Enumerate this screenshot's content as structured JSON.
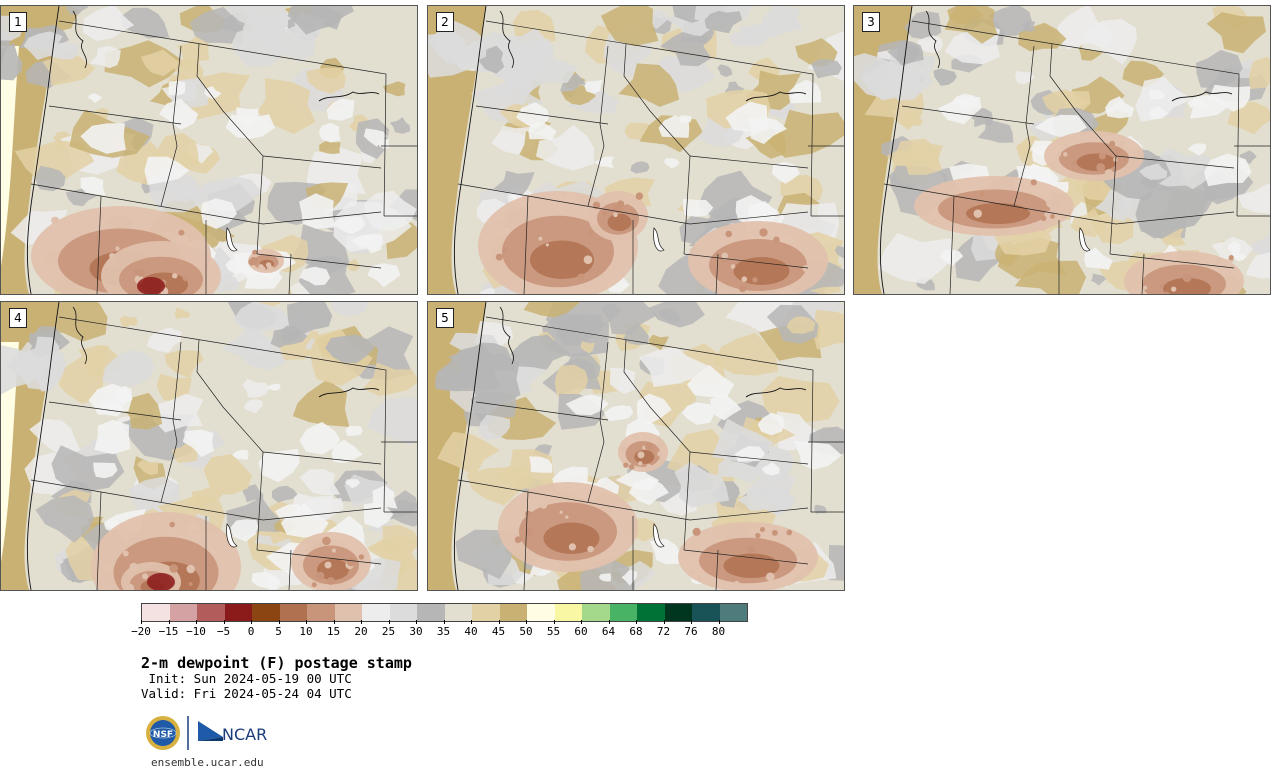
{
  "panels": [
    {
      "label": "1",
      "hot": [
        [
          120,
          250,
          90,
          50
        ],
        [
          160,
          270,
          60,
          35
        ],
        [
          265,
          255,
          18,
          12
        ]
      ],
      "cold": [
        [
          60,
          40,
          170,
          60
        ],
        [
          300,
          20,
          90,
          40
        ]
      ]
    },
    {
      "label": "2",
      "hot": [
        [
          130,
          240,
          80,
          55
        ],
        [
          190,
          210,
          30,
          25
        ],
        [
          330,
          255,
          70,
          40
        ]
      ],
      "cold": [
        [
          300,
          20,
          110,
          50
        ],
        [
          60,
          60,
          120,
          50
        ]
      ]
    },
    {
      "label": "3",
      "hot": [
        [
          140,
          200,
          80,
          30
        ],
        [
          240,
          150,
          50,
          25
        ],
        [
          330,
          275,
          60,
          30
        ]
      ],
      "cold": [
        [
          300,
          180,
          100,
          60
        ],
        [
          60,
          60,
          100,
          40
        ]
      ]
    },
    {
      "label": "4",
      "hot": [
        [
          165,
          265,
          75,
          55
        ],
        [
          150,
          280,
          30,
          20
        ],
        [
          330,
          260,
          40,
          30
        ]
      ],
      "cold": [
        [
          300,
          30,
          110,
          45
        ],
        [
          60,
          50,
          140,
          60
        ]
      ]
    },
    {
      "label": "5",
      "hot": [
        [
          140,
          225,
          70,
          45
        ],
        [
          215,
          150,
          25,
          20
        ],
        [
          320,
          255,
          70,
          35
        ]
      ],
      "cold": [
        [
          300,
          170,
          90,
          60
        ],
        [
          60,
          60,
          110,
          40
        ]
      ]
    }
  ],
  "colorbar": {
    "colors": [
      "#f4e2e2",
      "#d4a2a2",
      "#b35c5c",
      "#8b1a1a",
      "#8b4513",
      "#b07150",
      "#c9957a",
      "#e0c1ad",
      "#ededed",
      "#dcdcdc",
      "#b6b6b6",
      "#e2dfd0",
      "#e3d1a6",
      "#c9b173",
      "#fffde3",
      "#f9f7a3",
      "#a4d98c",
      "#48b365",
      "#007236",
      "#00361f",
      "#1a5357",
      "#4e7b7b"
    ],
    "ticks": [
      "-20",
      "-15",
      "-10",
      "-5",
      "0",
      "5",
      "10",
      "15",
      "20",
      "25",
      "30",
      "35",
      "40",
      "45",
      "50",
      "55",
      "60",
      "64",
      "68",
      "72",
      "76",
      "80"
    ]
  },
  "title": "2-m dewpoint (F) postage stamp",
  "init": " Init: Sun 2024-05-19 00 UTC",
  "valid": "Valid: Fri 2024-05-24 04 UTC",
  "logos": {
    "nsf": "NSF",
    "ncar": "NCAR"
  },
  "url": "ensemble.ucar.edu"
}
